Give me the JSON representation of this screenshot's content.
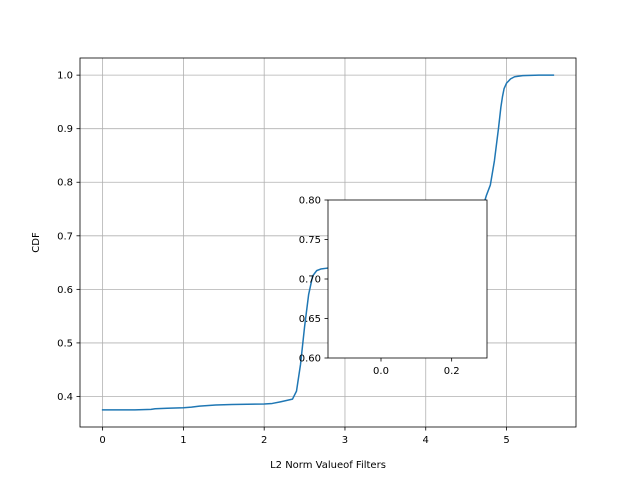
{
  "chart_data": [
    {
      "type": "line",
      "xlabel": "L2 Norm Valueof Filters",
      "ylabel": "CDF",
      "xlim": [
        -0.28,
        5.86
      ],
      "ylim": [
        0.343,
        1.032
      ],
      "xticks": [
        0,
        1,
        2,
        3,
        4,
        5
      ],
      "xtick_labels": [
        "0",
        "1",
        "2",
        "3",
        "4",
        "5"
      ],
      "yticks": [
        0.4,
        0.5,
        0.6,
        0.7,
        0.8,
        0.9,
        1.0
      ],
      "ytick_labels": [
        "0.4",
        "0.5",
        "0.6",
        "0.7",
        "0.8",
        "0.9",
        "1.0"
      ],
      "grid": true,
      "series": [
        {
          "color": "#1f77b4",
          "x": [
            0,
            0.2,
            0.4,
            0.6,
            0.65,
            0.8,
            1.0,
            1.1,
            1.2,
            1.4,
            1.6,
            2.0,
            2.1,
            2.2,
            2.35,
            2.4,
            2.45,
            2.5,
            2.55,
            2.6,
            2.65,
            2.7,
            2.8,
            3.0,
            3.5,
            4.0,
            4.5,
            4.7,
            4.75,
            4.8,
            4.85,
            4.9,
            4.93,
            4.95,
            4.97,
            5.0,
            5.05,
            5.1,
            5.2,
            5.4,
            5.58
          ],
          "y": [
            0.375,
            0.375,
            0.375,
            0.376,
            0.377,
            0.378,
            0.379,
            0.38,
            0.382,
            0.384,
            0.385,
            0.386,
            0.387,
            0.39,
            0.395,
            0.41,
            0.46,
            0.53,
            0.59,
            0.625,
            0.635,
            0.638,
            0.64,
            0.641,
            0.642,
            0.643,
            0.68,
            0.75,
            0.775,
            0.795,
            0.84,
            0.9,
            0.94,
            0.96,
            0.975,
            0.985,
            0.993,
            0.997,
            0.999,
            1.0,
            1.0
          ]
        }
      ]
    },
    {
      "type": "line",
      "xlim": [
        -0.15,
        0.3
      ],
      "ylim": [
        0.6,
        0.8
      ],
      "xticks": [
        0.0,
        0.2
      ],
      "xtick_labels": [
        "0.0",
        "0.2"
      ],
      "yticks": [
        0.6,
        0.65,
        0.7,
        0.75,
        0.8
      ],
      "ytick_labels": [
        "0.60",
        "0.65",
        "0.70",
        "0.75",
        "0.80"
      ],
      "grid": false,
      "series": []
    }
  ]
}
